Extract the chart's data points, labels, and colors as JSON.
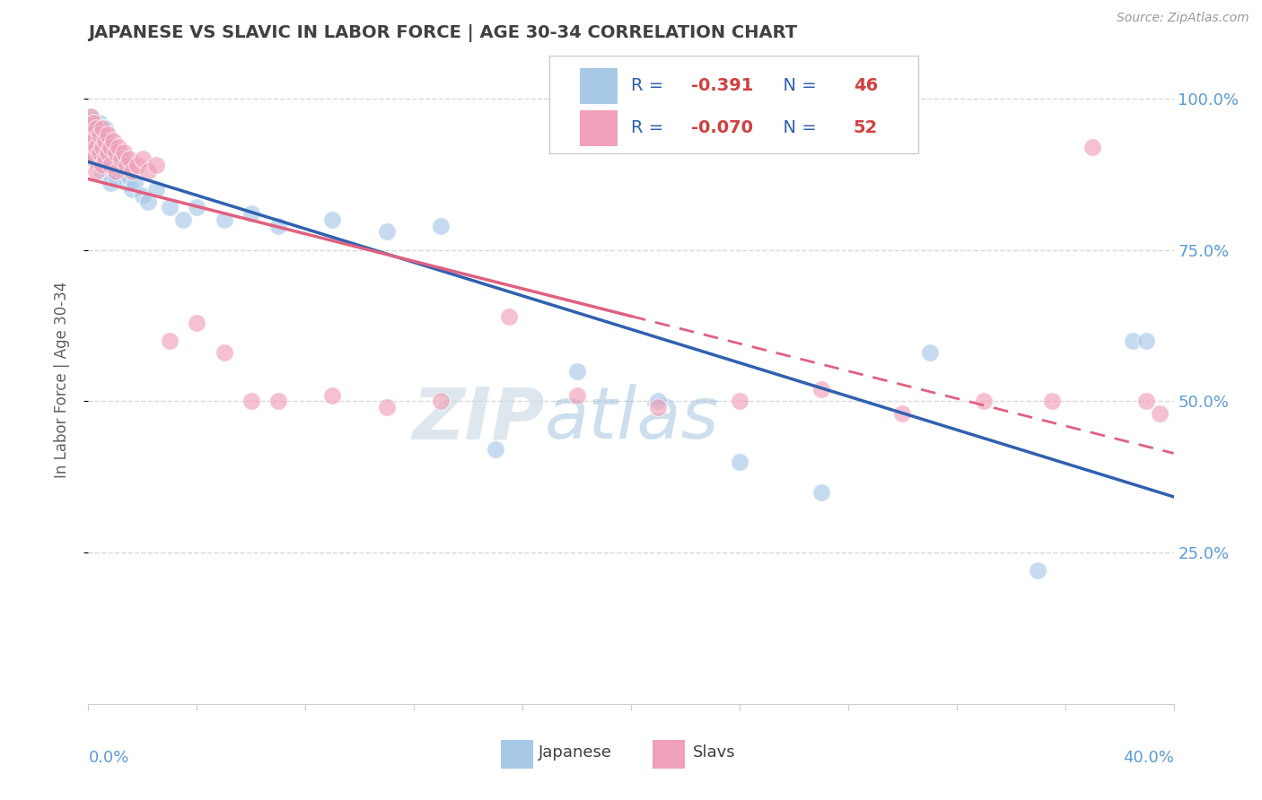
{
  "title": "JAPANESE VS SLAVIC IN LABOR FORCE | AGE 30-34 CORRELATION CHART",
  "source_text": "Source: ZipAtlas.com",
  "ylabel": "In Labor Force | Age 30-34",
  "ytick_labels": [
    "25.0%",
    "50.0%",
    "75.0%",
    "100.0%"
  ],
  "ytick_values": [
    0.25,
    0.5,
    0.75,
    1.0
  ],
  "legend_japanese": "Japanese",
  "legend_slavs": "Slavs",
  "r_japanese": "-0.391",
  "n_japanese": "46",
  "r_slavs": "-0.070",
  "n_slavs": "52",
  "blue_dot_color": "#a8c8e8",
  "pink_dot_color": "#f0a0b8",
  "blue_line_color": "#3060b0",
  "pink_line_color": "#e06080",
  "watermark": "ZIPatlas",
  "watermark_color": "#d0e4f0",
  "background_color": "#ffffff",
  "label_color": "#5b9bd5",
  "title_color": "#404040",
  "ylabel_color": "#606060",
  "grid_color": "#d8d8d8",
  "xlim": [
    0.0,
    0.4
  ],
  "ylim": [
    0.0,
    1.07
  ],
  "japanese_x": [
    0.001,
    0.001,
    0.002,
    0.002,
    0.003,
    0.003,
    0.004,
    0.004,
    0.005,
    0.005,
    0.006,
    0.006,
    0.007,
    0.007,
    0.008,
    0.008,
    0.009,
    0.01,
    0.011,
    0.012,
    0.013,
    0.014,
    0.015,
    0.016,
    0.017,
    0.02,
    0.022,
    0.025,
    0.03,
    0.035,
    0.04,
    0.05,
    0.06,
    0.07,
    0.09,
    0.11,
    0.13,
    0.15,
    0.18,
    0.21,
    0.24,
    0.27,
    0.31,
    0.35,
    0.385,
    0.39
  ],
  "japanese_y": [
    0.97,
    0.93,
    0.95,
    0.91,
    0.94,
    0.9,
    0.96,
    0.92,
    0.93,
    0.88,
    0.95,
    0.91,
    0.92,
    0.88,
    0.9,
    0.86,
    0.89,
    0.87,
    0.91,
    0.89,
    0.88,
    0.86,
    0.87,
    0.85,
    0.86,
    0.84,
    0.83,
    0.85,
    0.82,
    0.8,
    0.82,
    0.8,
    0.81,
    0.79,
    0.8,
    0.78,
    0.79,
    0.42,
    0.55,
    0.5,
    0.4,
    0.35,
    0.58,
    0.22,
    0.6,
    0.6
  ],
  "slavs_x": [
    0.001,
    0.001,
    0.001,
    0.002,
    0.002,
    0.002,
    0.003,
    0.003,
    0.003,
    0.004,
    0.004,
    0.005,
    0.005,
    0.005,
    0.006,
    0.006,
    0.007,
    0.007,
    0.008,
    0.008,
    0.009,
    0.01,
    0.01,
    0.011,
    0.012,
    0.013,
    0.014,
    0.015,
    0.016,
    0.018,
    0.02,
    0.022,
    0.025,
    0.03,
    0.04,
    0.05,
    0.06,
    0.07,
    0.09,
    0.11,
    0.13,
    0.155,
    0.18,
    0.21,
    0.24,
    0.27,
    0.3,
    0.33,
    0.355,
    0.37,
    0.39,
    0.395
  ],
  "slavs_y": [
    0.97,
    0.94,
    0.91,
    0.96,
    0.93,
    0.9,
    0.95,
    0.92,
    0.88,
    0.94,
    0.91,
    0.95,
    0.92,
    0.89,
    0.93,
    0.9,
    0.94,
    0.91,
    0.92,
    0.89,
    0.93,
    0.91,
    0.88,
    0.92,
    0.9,
    0.91,
    0.89,
    0.9,
    0.88,
    0.89,
    0.9,
    0.88,
    0.89,
    0.6,
    0.63,
    0.58,
    0.5,
    0.5,
    0.51,
    0.49,
    0.5,
    0.64,
    0.51,
    0.49,
    0.5,
    0.52,
    0.48,
    0.5,
    0.5,
    0.92,
    0.5,
    0.48
  ]
}
